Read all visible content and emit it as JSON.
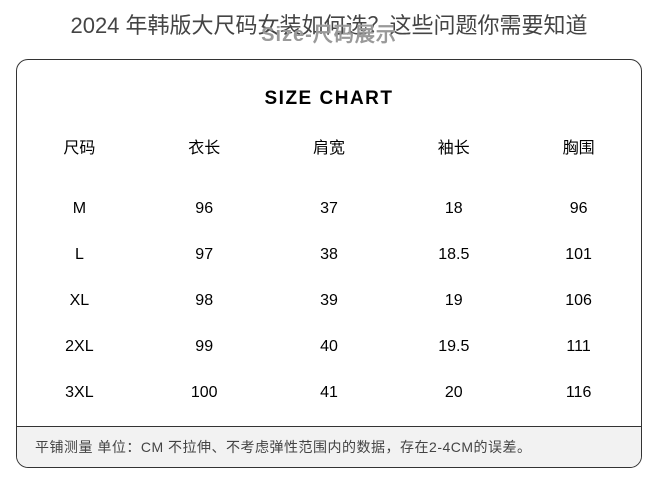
{
  "header": {
    "page_title": "2024 年韩版大尺码女装如何选？这些问题你需要知道",
    "subtitle": "Size-尺码展示"
  },
  "chart": {
    "title": "SIZE CHART",
    "columns": [
      "尺码",
      "衣长",
      "肩宽",
      "袖长",
      "胸围"
    ],
    "rows": [
      [
        "M",
        "96",
        "37",
        "18",
        "96"
      ],
      [
        "L",
        "97",
        "38",
        "18.5",
        "101"
      ],
      [
        "XL",
        "98",
        "39",
        "19",
        "106"
      ],
      [
        "2XL",
        "99",
        "40",
        "19.5",
        "111"
      ],
      [
        "3XL",
        "100",
        "41",
        "20",
        "116"
      ]
    ],
    "footer_note": "平铺测量   单位：CM  不拉伸、不考虑弹性范围内的数据，存在2-4CM的误差。"
  },
  "styling": {
    "body_width": 658,
    "body_height": 500,
    "background_color": "#ffffff",
    "border_color": "#333333",
    "border_radius": 12,
    "title_color": "#444444",
    "subtitle_color": "#999999",
    "table_text_color": "#000000",
    "footer_bg": "#f2f2f2",
    "footer_text_color": "#444444",
    "page_title_fontsize": 22,
    "subtitle_fontsize": 20,
    "chart_title_fontsize": 19,
    "cell_fontsize": 16,
    "footer_fontsize": 14
  }
}
